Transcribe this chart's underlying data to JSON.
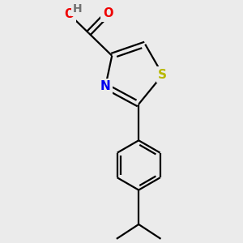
{
  "bg_color": "#ebebeb",
  "bond_color": "#000000",
  "bond_width": 1.6,
  "atom_colors": {
    "N": "#0000ee",
    "O": "#ee0000",
    "S": "#b8b800",
    "H": "#707070",
    "C": "#000000"
  },
  "S_color": "#b8b800",
  "N_color": "#0000ee",
  "O_color": "#ee0000",
  "H_color": "#707070"
}
